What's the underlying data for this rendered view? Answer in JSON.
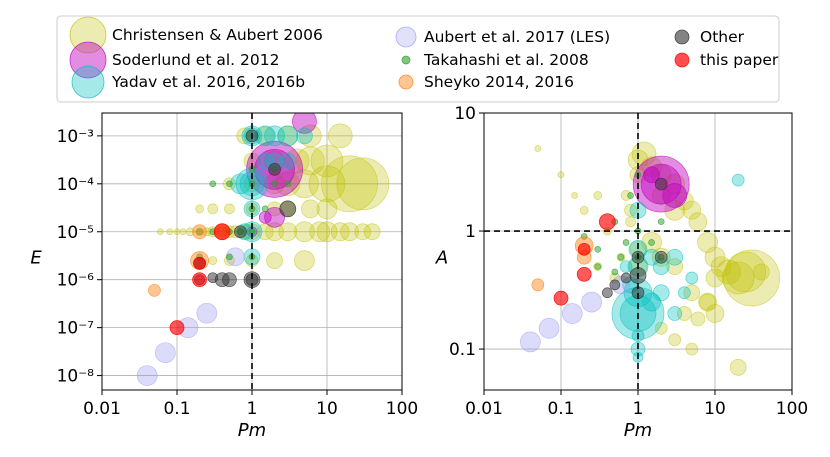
{
  "legend": {
    "entries": [
      {
        "label": "Christensen & Aubert 2006",
        "color": "#bfbf00"
      },
      {
        "label": "Soderlund et al. 2012",
        "color": "#bf00bf"
      },
      {
        "label": "Yadav et al. 2016, 2016b",
        "color": "#00bfbf"
      },
      {
        "label": "Aubert et al. 2017 (LES)",
        "color": "#9c9cf0"
      },
      {
        "label": "Takahashi et al. 2008",
        "color": "#2ca02c"
      },
      {
        "label": "Sheyko 2014, 2016",
        "color": "#ff7f0e"
      },
      {
        "label": "Other",
        "color": "#303030"
      },
      {
        "label": "this paper",
        "color": "#ff0000"
      }
    ]
  },
  "chart_data": [
    {
      "type": "scatter",
      "title": "",
      "xlabel": "Pm",
      "ylabel": "E",
      "xscale": "log",
      "yscale": "log",
      "xlim": [
        0.01,
        100
      ],
      "ylim": [
        5e-09,
        0.003
      ],
      "xticks": [
        0.01,
        0.1,
        1,
        10,
        100
      ],
      "xtick_labels": [
        "0.01",
        "0.1",
        "1",
        "10",
        "100"
      ],
      "yticks": [
        1e-08,
        1e-07,
        1e-06,
        1e-05,
        0.0001,
        0.001
      ],
      "ytick_labels": [
        "10⁻⁸",
        "10⁻⁷",
        "10⁻⁶",
        "10⁻⁵",
        "10⁻⁴",
        "10⁻³"
      ],
      "grid": true,
      "reference_line": {
        "axis": "x",
        "value": 1,
        "style": "dashed"
      },
      "series": [
        {
          "name": "Christensen & Aubert 2006",
          "color": "#bfbf00",
          "alpha": 0.3,
          "x": [
            0.06,
            0.08,
            0.1,
            0.12,
            0.15,
            0.2,
            0.25,
            0.3,
            0.4,
            0.5,
            0.6,
            0.8,
            1,
            1.5,
            2,
            3,
            5,
            8,
            10,
            15,
            20,
            30,
            40,
            0.5,
            1,
            2,
            3,
            5,
            10,
            20,
            1,
            2,
            4,
            6,
            10,
            30,
            0.8,
            1.5,
            3,
            6,
            15,
            0.2,
            0.3,
            0.5,
            1,
            2,
            3,
            6,
            10,
            0.3,
            0.5,
            1,
            2,
            5
          ],
          "y": [
            1e-05,
            1e-05,
            1e-05,
            1e-05,
            1e-05,
            1e-05,
            1e-05,
            1e-05,
            1e-05,
            1e-05,
            1e-05,
            1e-05,
            1e-05,
            1e-05,
            1e-05,
            1e-05,
            1e-05,
            1e-05,
            1e-05,
            1e-05,
            1e-05,
            1e-05,
            1e-05,
            0.0001,
            0.0001,
            0.0001,
            0.0001,
            0.0001,
            0.0001,
            0.0001,
            0.0003,
            0.0003,
            0.0003,
            0.0003,
            0.0003,
            0.0001,
            0.001,
            0.001,
            0.001,
            0.001,
            0.001,
            3e-05,
            3e-05,
            3e-05,
            3e-05,
            3e-05,
            3e-05,
            3e-05,
            3e-05,
            2.5e-06,
            2.5e-06,
            2.5e-06,
            2.5e-06,
            2.5e-06
          ],
          "size": [
            3,
            3,
            3,
            3,
            4,
            4,
            4,
            5,
            5,
            6,
            6,
            7,
            8,
            8,
            9,
            9,
            10,
            10,
            10,
            9,
            9,
            8,
            8,
            6,
            8,
            10,
            12,
            14,
            18,
            28,
            8,
            10,
            12,
            14,
            16,
            26,
            8,
            9,
            10,
            11,
            12,
            4,
            5,
            5,
            6,
            7,
            8,
            9,
            10,
            4,
            5,
            6,
            8,
            10
          ]
        },
        {
          "name": "Soderlund et al. 2012",
          "color": "#bf00bf",
          "alpha": 0.45,
          "x": [
            2,
            2,
            5,
            2,
            1.5,
            1
          ],
          "y": [
            0.0002,
            0.0002,
            0.002,
            2e-05,
            2e-05,
            1e-05
          ],
          "size": [
            28,
            20,
            12,
            10,
            6,
            5
          ]
        },
        {
          "name": "Yadav et al. 2016, 2016b",
          "color": "#00bfbf",
          "alpha": 0.35,
          "x": [
            1,
            1,
            1,
            1,
            1,
            1.5,
            1.5,
            2,
            2,
            3,
            3,
            5,
            0.7,
            1,
            1,
            0.8
          ],
          "y": [
            0.001,
            0.001,
            0.0001,
            0.0001,
            3e-05,
            0.001,
            0.0003,
            0.001,
            0.0003,
            0.001,
            0.0003,
            0.001,
            0.0001,
            1e-05,
            3e-06,
            1e-05
          ],
          "size": [
            10,
            8,
            16,
            12,
            8,
            10,
            8,
            10,
            8,
            10,
            8,
            8,
            10,
            10,
            8,
            8
          ]
        },
        {
          "name": "Aubert et al. 2017 (LES)",
          "color": "#9c9cf0",
          "alpha": 0.35,
          "x": [
            0.04,
            0.07,
            0.14,
            0.25,
            0.6
          ],
          "y": [
            1e-08,
            3e-08,
            1e-07,
            2e-07,
            3e-06
          ],
          "size": [
            10,
            10,
            10,
            10,
            9
          ]
        },
        {
          "name": "Takahashi et al. 2008",
          "color": "#2ca02c",
          "alpha": 0.5,
          "x": [
            0.2,
            0.3,
            0.5,
            1,
            1,
            1,
            1,
            1,
            0.3,
            0.5,
            2,
            2,
            3,
            0.2,
            0.5,
            0.7,
            1.5
          ],
          "y": [
            1e-05,
            1e-05,
            1e-05,
            1e-05,
            0.0001,
            0.0002,
            3e-05,
            3e-06,
            0.0001,
            0.0001,
            0.0002,
            0.0001,
            0.0001,
            3e-06,
            3e-06,
            1e-05,
            3e-05
          ],
          "size": [
            3,
            3,
            3,
            3,
            3,
            3,
            3,
            3,
            3,
            3,
            3,
            3,
            3,
            3,
            3,
            3,
            3
          ]
        },
        {
          "name": "Sheyko 2014, 2016",
          "color": "#ff7f0e",
          "alpha": 0.45,
          "x": [
            0.05,
            0.2,
            0.2,
            0.4
          ],
          "y": [
            6e-07,
            2.5e-06,
            1e-05,
            1e-05
          ],
          "size": [
            6,
            9,
            7,
            8
          ]
        },
        {
          "name": "Other",
          "color": "#303030",
          "alpha": 0.5,
          "x": [
            0.2,
            0.4,
            0.5,
            0.7,
            1,
            1,
            2,
            3,
            1,
            0.2,
            0.3
          ],
          "y": [
            2.2e-06,
            1e-06,
            1e-06,
            1e-05,
            1e-06,
            1e-06,
            0.0002,
            3e-05,
            0.001,
            1e-06,
            1.1e-06
          ],
          "size": [
            6,
            7,
            7,
            6,
            8,
            6,
            6,
            8,
            6,
            5,
            5
          ]
        },
        {
          "name": "this paper",
          "color": "#ff0000",
          "alpha": 0.65,
          "x": [
            0.1,
            0.2,
            0.4,
            0.2
          ],
          "y": [
            1e-07,
            1e-06,
            1e-05,
            2.2e-06
          ],
          "size": [
            7,
            7,
            8,
            6
          ]
        }
      ]
    },
    {
      "type": "scatter",
      "title": "",
      "xlabel": "Pm",
      "ylabel": "A",
      "xscale": "log",
      "yscale": "log",
      "xlim": [
        0.01,
        100
      ],
      "ylim": [
        0.045,
        10
      ],
      "xticks": [
        0.01,
        0.1,
        1,
        10,
        100
      ],
      "xtick_labels": [
        "0.01",
        "0.1",
        "1",
        "10",
        "100"
      ],
      "yticks": [
        0.1,
        1,
        10
      ],
      "ytick_labels": [
        "0.1",
        "1",
        "10"
      ],
      "grid": true,
      "reference_line": [
        {
          "axis": "x",
          "value": 1,
          "style": "dashed"
        },
        {
          "axis": "y",
          "value": 1,
          "style": "dashed"
        }
      ],
      "series": [
        {
          "name": "Christensen & Aubert 2006",
          "color": "#bfbf00",
          "alpha": 0.3,
          "x": [
            1,
            1,
            1.2,
            1.5,
            2,
            2,
            3,
            3,
            4,
            5,
            6,
            8,
            10,
            10,
            12,
            15,
            20,
            25,
            30,
            40,
            0.7,
            0.8,
            1,
            1,
            1.5,
            2,
            3,
            5,
            8,
            0.3,
            0.5,
            0.6,
            0.8,
            2,
            3,
            4,
            5,
            6,
            8,
            10,
            20,
            0.05,
            0.1,
            0.15,
            0.2,
            0.3,
            0.4
          ],
          "y": [
            4,
            3,
            4.5,
            3.5,
            3,
            2,
            2.5,
            1.5,
            1.8,
            1.5,
            1.2,
            0.8,
            0.6,
            0.4,
            0.5,
            0.45,
            0.4,
            0.45,
            0.4,
            0.45,
            2,
            1.5,
            0.7,
            0.5,
            0.8,
            0.6,
            0.5,
            0.3,
            0.25,
            0.5,
            0.4,
            0.6,
            1.2,
            0.15,
            0.12,
            0.2,
            0.1,
            0.18,
            0.25,
            0.2,
            0.07,
            5,
            3,
            2,
            1.5,
            2,
            1
          ],
          "size": [
            10,
            8,
            12,
            10,
            10,
            9,
            10,
            10,
            9,
            9,
            9,
            10,
            10,
            9,
            10,
            12,
            16,
            20,
            28,
            8,
            5,
            6,
            8,
            9,
            10,
            9,
            8,
            8,
            9,
            4,
            5,
            4,
            5,
            6,
            6,
            7,
            6,
            7,
            8,
            9,
            8,
            3,
            3,
            3,
            4,
            4,
            4
          ]
        },
        {
          "name": "Soderlund et al. 2012",
          "color": "#bf00bf",
          "alpha": 0.45,
          "x": [
            2,
            2,
            3,
            1.5
          ],
          "y": [
            2.5,
            2.5,
            2,
            3
          ],
          "size": [
            28,
            20,
            12,
            8
          ]
        },
        {
          "name": "Yadav et al. 2016, 2016b",
          "color": "#00bfbf",
          "alpha": 0.35,
          "x": [
            1,
            1,
            1,
            1,
            1,
            1,
            1,
            1.5,
            1.5,
            2,
            2,
            3,
            3,
            4,
            5,
            20,
            0.8,
            0.7,
            1,
            1
          ],
          "y": [
            0.2,
            0.2,
            0.3,
            0.5,
            0.7,
            1.5,
            0.1,
            0.25,
            0.6,
            0.3,
            0.5,
            0.2,
            0.6,
            0.3,
            0.4,
            2.7,
            0.35,
            0.5,
            0.085,
            0.13
          ],
          "size": [
            26,
            18,
            14,
            10,
            9,
            8,
            7,
            9,
            8,
            8,
            8,
            7,
            8,
            6,
            6,
            6,
            8,
            6,
            5,
            6
          ]
        },
        {
          "name": "Aubert et al. 2017 (LES)",
          "color": "#9c9cf0",
          "alpha": 0.35,
          "x": [
            0.04,
            0.07,
            0.14,
            0.25,
            0.6
          ],
          "y": [
            0.115,
            0.15,
            0.2,
            0.25,
            0.35
          ],
          "size": [
            10,
            10,
            10,
            10,
            9
          ]
        },
        {
          "name": "Takahashi et al. 2008",
          "color": "#2ca02c",
          "alpha": 0.5,
          "x": [
            0.2,
            0.3,
            0.5,
            0.6,
            0.7,
            1,
            1,
            1.5,
            2,
            0.3,
            0.5,
            0.8,
            1,
            2
          ],
          "y": [
            0.9,
            0.7,
            1.2,
            0.6,
            0.8,
            1,
            0.6,
            0.8,
            1.2,
            0.5,
            0.45,
            2,
            3,
            0.6
          ],
          "size": [
            3,
            3,
            3,
            3,
            3,
            3,
            3,
            3,
            3,
            3,
            3,
            3,
            3,
            3
          ]
        },
        {
          "name": "Sheyko 2014, 2016",
          "color": "#ff7f0e",
          "alpha": 0.45,
          "x": [
            0.05,
            0.2,
            0.2
          ],
          "y": [
            0.35,
            0.75,
            0.6
          ],
          "size": [
            6,
            9,
            7
          ]
        },
        {
          "name": "Other",
          "color": "#303030",
          "alpha": 0.5,
          "x": [
            1,
            1,
            1,
            2,
            2,
            0.4,
            0.5,
            0.7
          ],
          "y": [
            0.42,
            0.6,
            0.3,
            2.5,
            0.6,
            0.3,
            0.35,
            0.4
          ],
          "size": [
            8,
            6,
            6,
            6,
            6,
            5,
            5,
            5
          ]
        },
        {
          "name": "this paper",
          "color": "#ff0000",
          "alpha": 0.65,
          "x": [
            0.1,
            0.2,
            0.4,
            0.2
          ],
          "y": [
            0.27,
            0.43,
            1.2,
            0.7
          ],
          "size": [
            7,
            7,
            8,
            6
          ]
        }
      ]
    }
  ]
}
